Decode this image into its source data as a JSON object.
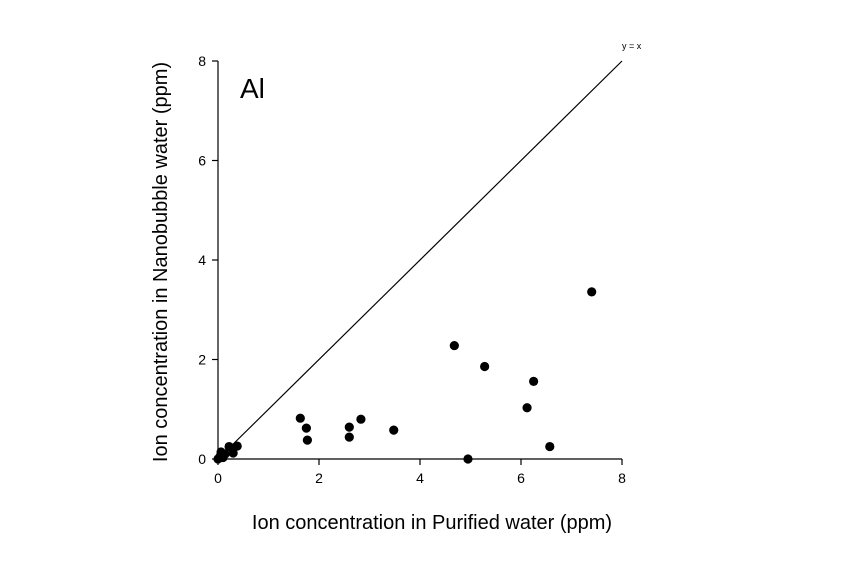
{
  "chart_data": {
    "type": "scatter",
    "panel_label": "Al",
    "xlabel": "Ion concentration in Purified water  (ppm)",
    "ylabel": "Ion concentration in Nanobubble water  (ppm)",
    "xlim": [
      0,
      8
    ],
    "ylim": [
      0,
      8
    ],
    "xticks": [
      0,
      2,
      4,
      6,
      8
    ],
    "yticks": [
      0,
      2,
      4,
      6,
      8
    ],
    "grid": false,
    "reference_line": {
      "label": "y = x",
      "slope": 1,
      "intercept": 0
    },
    "points": [
      {
        "x": 0.0,
        "y": 0.0
      },
      {
        "x": 0.04,
        "y": 0.05
      },
      {
        "x": 0.06,
        "y": 0.14
      },
      {
        "x": 0.1,
        "y": 0.03
      },
      {
        "x": 0.14,
        "y": 0.1
      },
      {
        "x": 0.22,
        "y": 0.25
      },
      {
        "x": 0.3,
        "y": 0.12
      },
      {
        "x": 0.38,
        "y": 0.26
      },
      {
        "x": 1.63,
        "y": 0.82
      },
      {
        "x": 1.75,
        "y": 0.62
      },
      {
        "x": 1.77,
        "y": 0.38
      },
      {
        "x": 2.6,
        "y": 0.64
      },
      {
        "x": 2.6,
        "y": 0.44
      },
      {
        "x": 2.83,
        "y": 0.8
      },
      {
        "x": 3.48,
        "y": 0.58
      },
      {
        "x": 4.68,
        "y": 2.28
      },
      {
        "x": 4.95,
        "y": 0.0
      },
      {
        "x": 5.28,
        "y": 1.86
      },
      {
        "x": 6.12,
        "y": 1.03
      },
      {
        "x": 6.25,
        "y": 1.56
      },
      {
        "x": 6.57,
        "y": 0.25
      },
      {
        "x": 7.4,
        "y": 3.36
      }
    ]
  }
}
